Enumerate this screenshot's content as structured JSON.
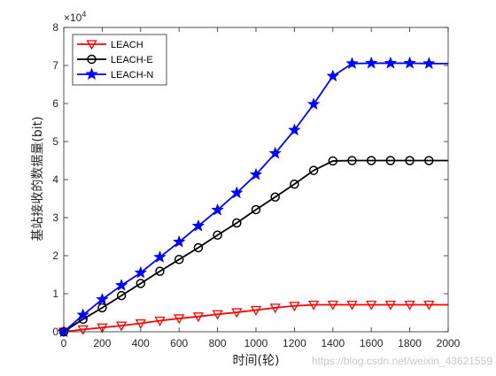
{
  "chart_data": {
    "type": "line",
    "title": "",
    "xlabel": "时间(轮)",
    "ylabel": "基站接收的数据量(bit)",
    "xlim": [
      0,
      2000
    ],
    "ylim": [
      0,
      80000
    ],
    "x_ticks": [
      0,
      200,
      400,
      600,
      800,
      1000,
      1200,
      1400,
      1600,
      1800,
      2000
    ],
    "y_ticks": [
      0,
      1,
      2,
      3,
      4,
      5,
      6,
      7,
      8
    ],
    "y_exponent_label": "×10",
    "y_exponent_power": "4",
    "grid": false,
    "legend_position": "top-left",
    "series": [
      {
        "name": "LEACH",
        "color": "#ff0000",
        "marker": "triangle-down",
        "x": [
          0,
          100,
          200,
          300,
          400,
          500,
          600,
          700,
          800,
          900,
          1000,
          1100,
          1200,
          1300,
          1400,
          1500,
          1600,
          1700,
          1800,
          1900,
          2000
        ],
        "y": [
          0,
          600,
          1100,
          1600,
          2200,
          2900,
          3500,
          4000,
          4600,
          5100,
          5700,
          6300,
          6800,
          7100,
          7100,
          7100,
          7100,
          7100,
          7100,
          7100,
          7100
        ],
        "marker_x": [
          0,
          100,
          200,
          300,
          400,
          500,
          600,
          700,
          800,
          900,
          1000,
          1100,
          1200,
          1300,
          1400,
          1500,
          1600,
          1700,
          1800,
          1900
        ]
      },
      {
        "name": "LEACH-E",
        "color": "#000000",
        "marker": "circle",
        "x": [
          0,
          100,
          200,
          300,
          400,
          500,
          600,
          700,
          800,
          900,
          1000,
          1100,
          1200,
          1300,
          1400,
          1500,
          1600,
          1700,
          1800,
          1900,
          2000
        ],
        "y": [
          0,
          3300,
          6300,
          9500,
          12700,
          15900,
          19000,
          22100,
          25400,
          28600,
          32100,
          35400,
          38800,
          42400,
          44900,
          45000,
          45000,
          45000,
          45000,
          45000,
          45000
        ],
        "marker_x": [
          0,
          100,
          200,
          300,
          400,
          500,
          600,
          700,
          800,
          900,
          1000,
          1100,
          1200,
          1300,
          1400,
          1500,
          1600,
          1700,
          1800,
          1900
        ]
      },
      {
        "name": "LEACH-N",
        "color": "#0000ff",
        "marker": "star",
        "x": [
          0,
          100,
          200,
          300,
          400,
          500,
          600,
          700,
          800,
          900,
          1000,
          1100,
          1200,
          1300,
          1400,
          1500,
          1600,
          1700,
          1800,
          1900,
          2000
        ],
        "y": [
          0,
          4400,
          8500,
          12200,
          15500,
          19600,
          23600,
          27800,
          32000,
          36500,
          41300,
          46900,
          53000,
          59800,
          67200,
          70500,
          70600,
          70600,
          70600,
          70500,
          70500
        ],
        "marker_x": [
          0,
          100,
          200,
          300,
          400,
          500,
          600,
          700,
          800,
          900,
          1000,
          1100,
          1200,
          1300,
          1400,
          1500,
          1600,
          1700,
          1800,
          1900
        ]
      }
    ]
  },
  "watermark": "https://blog.csdn.net/weixin_43621559"
}
